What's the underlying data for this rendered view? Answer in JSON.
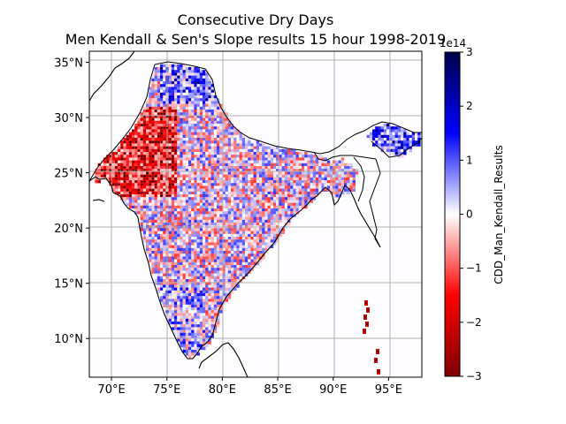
{
  "title": {
    "line1": "Consecutive Dry Days",
    "line2": "Men Kendall & Sen's Slope results 15 hour 1998-2019"
  },
  "map": {
    "lon_range": [
      68,
      98
    ],
    "lat_range": [
      6.5,
      36
    ],
    "grid": true,
    "lon_ticks": [
      {
        "value": 70,
        "label": "70°E"
      },
      {
        "value": 75,
        "label": "75°E"
      },
      {
        "value": 80,
        "label": "80°E"
      },
      {
        "value": 85,
        "label": "85°E"
      },
      {
        "value": 90,
        "label": "90°E"
      },
      {
        "value": 95,
        "label": "95°E"
      }
    ],
    "lat_ticks": [
      {
        "value": 10,
        "label": "10°N"
      },
      {
        "value": 15,
        "label": "15°N"
      },
      {
        "value": 20,
        "label": "20°N"
      },
      {
        "value": 25,
        "label": "25°N"
      },
      {
        "value": 30,
        "label": "30°N"
      },
      {
        "value": 35,
        "label": "35°N"
      }
    ]
  },
  "colorbar": {
    "label": "CDD_Man_Kendall_Results",
    "scale_text": "1e14",
    "colormap": "seismic_r",
    "range": [
      -3,
      3
    ],
    "ticks": [
      {
        "value": 3,
        "label": "3"
      },
      {
        "value": 2,
        "label": "2"
      },
      {
        "value": 1,
        "label": "1"
      },
      {
        "value": 0,
        "label": "0"
      },
      {
        "value": -1,
        "label": "−1"
      },
      {
        "value": -2,
        "label": "−2"
      },
      {
        "value": -3,
        "label": "−3"
      }
    ],
    "colors": {
      "low": "#7f0000",
      "mid_low": "#ff0000",
      "center": "#ffffff",
      "mid_high": "#0000ff",
      "high": "#00004c"
    }
  }
}
